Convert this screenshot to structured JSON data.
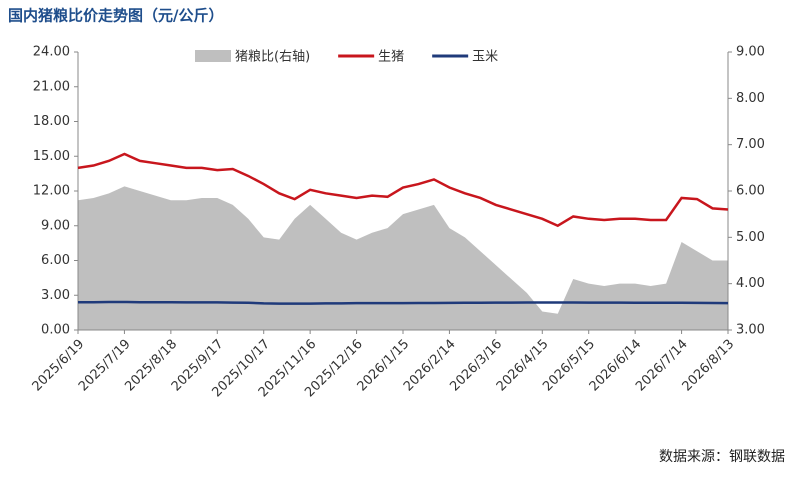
{
  "chart_data": {
    "type": "line",
    "title": "国内猪粮比价走势图（元/公斤）",
    "source": "数据来源：钢联数据",
    "x": [
      "2025/6/19",
      "2025/6/29",
      "2025/7/9",
      "2025/7/19",
      "2025/7/29",
      "2025/8/8",
      "2025/8/18",
      "2025/8/28",
      "2025/9/7",
      "2025/9/17",
      "2025/9/27",
      "2025/10/7",
      "2025/10/17",
      "2025/10/27",
      "2025/11/6",
      "2025/11/16",
      "2025/11/26",
      "2025/12/6",
      "2025/12/16",
      "2025/12/26",
      "2026/1/5",
      "2026/1/15",
      "2026/1/25",
      "2026/2/4",
      "2026/2/14",
      "2026/2/24",
      "2026/3/6",
      "2026/3/16",
      "2026/3/26",
      "2026/4/5",
      "2026/4/15",
      "2026/4/25",
      "2026/5/5",
      "2026/5/15",
      "2026/5/25",
      "2026/6/4",
      "2026/6/14",
      "2026/6/24",
      "2026/7/4",
      "2026/7/14",
      "2026/7/24",
      "2026/8/3",
      "2026/8/13"
    ],
    "xlim": [
      "2025/6/19",
      "2026/8/13"
    ],
    "xticks": [
      "2025/6/19",
      "2025/7/19",
      "2025/8/18",
      "2025/9/17",
      "2025/10/17",
      "2025/11/16",
      "2025/12/16",
      "2026/1/15",
      "2026/2/14",
      "2026/3/16",
      "2026/4/15",
      "2026/5/15",
      "2026/6/14",
      "2026/7/14",
      "2026/8/13"
    ],
    "ylim": [
      0,
      24
    ],
    "yticks": [
      {
        "value": 0,
        "label": "0.00"
      },
      {
        "value": 3,
        "label": "3.00"
      },
      {
        "value": 6,
        "label": "6.00"
      },
      {
        "value": 9,
        "label": "9.00"
      },
      {
        "value": 12,
        "label": "12.00"
      },
      {
        "value": 15,
        "label": "15.00"
      },
      {
        "value": 18,
        "label": "18.00"
      },
      {
        "value": 21,
        "label": "21.00"
      },
      {
        "value": 24,
        "label": "24.00"
      }
    ],
    "y2lim": [
      3,
      9
    ],
    "y2ticks": [
      {
        "value": 3,
        "label": "3.00"
      },
      {
        "value": 4,
        "label": "4.00"
      },
      {
        "value": 5,
        "label": "5.00"
      },
      {
        "value": 6,
        "label": "6.00"
      },
      {
        "value": 7,
        "label": "7.00"
      },
      {
        "value": 8,
        "label": "8.00"
      },
      {
        "value": 9,
        "label": "9.00"
      }
    ],
    "series": [
      {
        "name": "猪粮比(右轴)",
        "color": "#bfbfbf",
        "axis": "y2",
        "kind": "area",
        "values": [
          5.8,
          5.85,
          5.95,
          6.1,
          6.0,
          5.9,
          5.8,
          5.8,
          5.85,
          5.85,
          5.7,
          5.4,
          5.0,
          4.95,
          5.4,
          5.7,
          5.4,
          5.1,
          4.95,
          5.1,
          5.2,
          5.5,
          5.6,
          5.7,
          5.2,
          5.0,
          4.7,
          4.4,
          4.1,
          3.8,
          3.4,
          3.35,
          4.1,
          4.0,
          3.95,
          4.0,
          4.0,
          3.95,
          4.0,
          4.9,
          4.7,
          4.5,
          4.5
        ]
      },
      {
        "name": "生猪",
        "color": "#c8161d",
        "kind": "line",
        "values": [
          14.0,
          14.2,
          14.6,
          15.2,
          14.6,
          14.4,
          14.2,
          14.0,
          14.0,
          13.8,
          13.9,
          13.3,
          12.6,
          11.8,
          11.3,
          12.1,
          11.8,
          11.6,
          11.4,
          11.6,
          11.5,
          12.3,
          12.6,
          13.0,
          12.3,
          11.8,
          11.4,
          10.8,
          10.4,
          10.0,
          9.6,
          9.0,
          9.8,
          9.6,
          9.5,
          9.6,
          9.6,
          9.5,
          9.5,
          11.4,
          11.3,
          10.5,
          10.4
        ]
      },
      {
        "name": "玉米",
        "color": "#1f3a7a",
        "kind": "line",
        "values": [
          2.4,
          2.4,
          2.42,
          2.42,
          2.4,
          2.4,
          2.4,
          2.38,
          2.38,
          2.38,
          2.36,
          2.35,
          2.3,
          2.28,
          2.28,
          2.28,
          2.3,
          2.3,
          2.32,
          2.32,
          2.32,
          2.32,
          2.33,
          2.33,
          2.34,
          2.35,
          2.35,
          2.36,
          2.36,
          2.37,
          2.37,
          2.37,
          2.37,
          2.36,
          2.36,
          2.36,
          2.35,
          2.35,
          2.35,
          2.35,
          2.34,
          2.33,
          2.32
        ]
      }
    ]
  }
}
